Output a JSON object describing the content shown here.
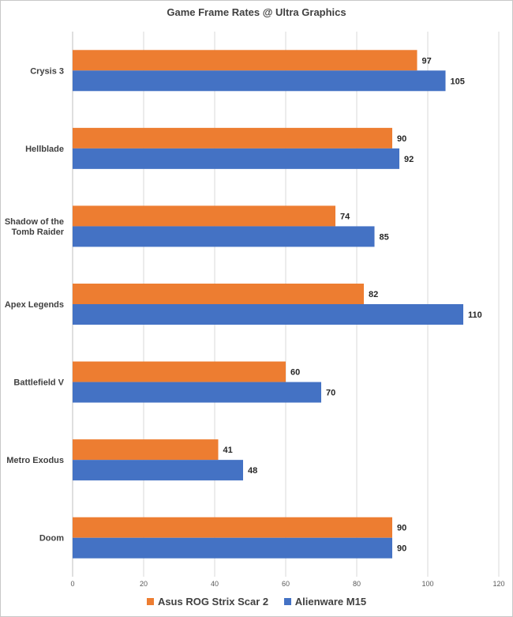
{
  "chart_data": {
    "type": "bar",
    "orientation": "horizontal",
    "title": "Game Frame Rates @ Ultra Graphics",
    "categories": [
      [
        "Crysis 3"
      ],
      [
        "Hellblade"
      ],
      [
        "Shadow of the",
        "Tomb Raider"
      ],
      [
        "Apex Legends"
      ],
      [
        "Battlefield V"
      ],
      [
        "Metro Exodus"
      ],
      [
        "Doom"
      ]
    ],
    "series": [
      {
        "name": "Asus ROG Strix Scar 2",
        "color": "#ed7d31",
        "values": [
          97,
          90,
          74,
          82,
          60,
          41,
          90
        ]
      },
      {
        "name": "Alienware M15",
        "color": "#4472c4",
        "values": [
          105,
          92,
          85,
          110,
          70,
          48,
          90
        ]
      }
    ],
    "xlim": [
      0,
      120
    ],
    "xticks": [
      0,
      20,
      40,
      60,
      80,
      100,
      120
    ],
    "grid": true,
    "legend_position": "bottom"
  }
}
